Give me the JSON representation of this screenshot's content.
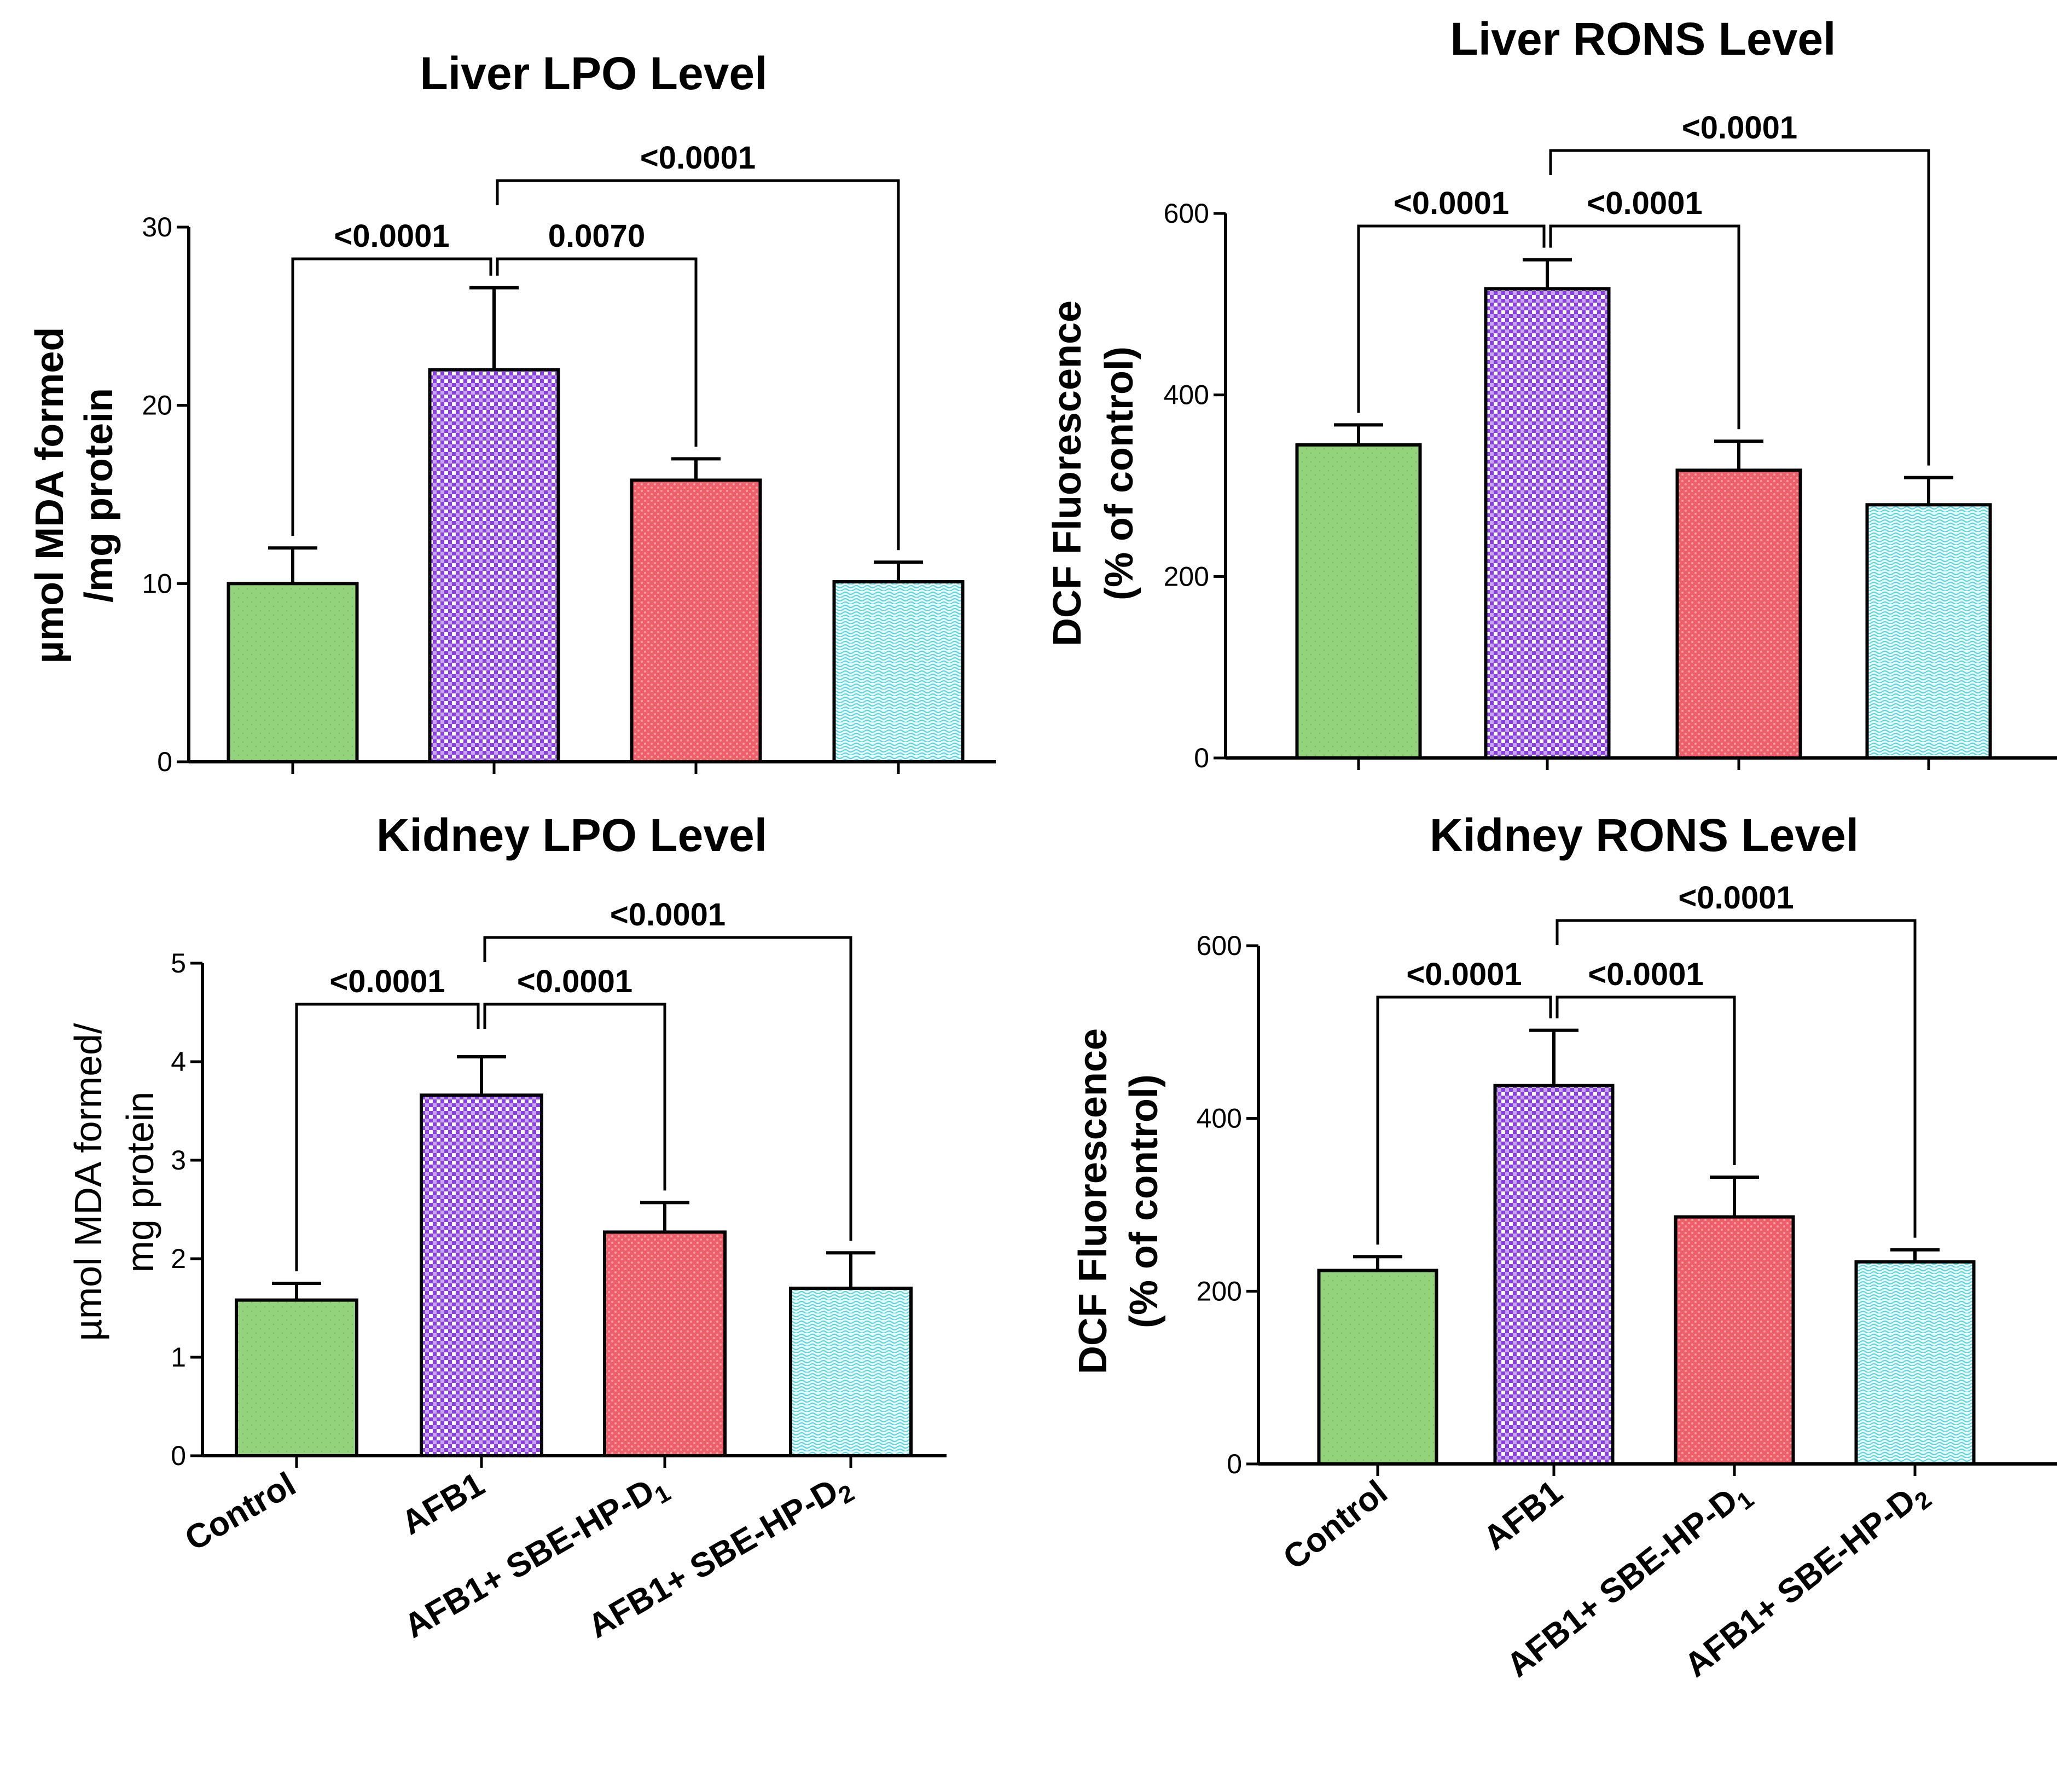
{
  "colors": {
    "control": "#92d37c",
    "afb1": "#9d5cf0",
    "d1": "#ef5f6a",
    "d2": "#b7f2f2",
    "axis": "#000000"
  },
  "chart_data": [
    {
      "type": "bar",
      "title": "Liver LPO Level",
      "ylabel_lines": [
        "µmol MDA formed",
        "/mg protein"
      ],
      "categories": [
        "Control",
        "AFB1",
        "AFB1+ SBE-HP-D1",
        "AFB1+ SBE-HP-D2"
      ],
      "values": [
        10.0,
        22.0,
        15.8,
        10.1
      ],
      "errors": [
        2.0,
        4.6,
        1.2,
        1.1
      ],
      "ylim": [
        0,
        30
      ],
      "yticks": [
        0,
        10,
        20,
        30
      ],
      "comparisons": [
        {
          "from": 1,
          "to": 0,
          "label": "<0.0001",
          "level": 0
        },
        {
          "from": 1,
          "to": 2,
          "label": "0.0070",
          "level": 0
        },
        {
          "from": 1,
          "to": 3,
          "label": "<0.0001",
          "level": 1
        }
      ]
    },
    {
      "type": "bar",
      "title": "Liver RONS Level",
      "ylabel_lines": [
        "DCF Fluorescence",
        "(% of control)"
      ],
      "categories": [
        "Control",
        "AFB1",
        "AFB1+ SBE-HP-D1",
        "AFB1+ SBE-HP-D2"
      ],
      "values": [
        345,
        517,
        317,
        279
      ],
      "errors": [
        22,
        32,
        32,
        30
      ],
      "ylim": [
        0,
        600
      ],
      "yticks": [
        0,
        200,
        400,
        600
      ],
      "comparisons": [
        {
          "from": 1,
          "to": 0,
          "label": "<0.0001",
          "level": 0
        },
        {
          "from": 1,
          "to": 2,
          "label": "<0.0001",
          "level": 0
        },
        {
          "from": 1,
          "to": 3,
          "label": "<0.0001",
          "level": 1
        }
      ]
    },
    {
      "type": "bar",
      "title": "Kidney LPO Level",
      "ylabel_lines": [
        "µmol MDA formed/",
        "mg protein"
      ],
      "categories": [
        "Control",
        "AFB1",
        "AFB1+ SBE-HP-D1",
        "AFB1+ SBE-HP-D2"
      ],
      "values": [
        1.58,
        3.66,
        2.27,
        1.7
      ],
      "errors": [
        0.17,
        0.39,
        0.3,
        0.36
      ],
      "ylim": [
        0,
        5
      ],
      "yticks": [
        0,
        1,
        2,
        3,
        4,
        5
      ],
      "comparisons": [
        {
          "from": 1,
          "to": 0,
          "label": "<0.0001",
          "level": 0
        },
        {
          "from": 1,
          "to": 2,
          "label": "<0.0001",
          "level": 0
        },
        {
          "from": 1,
          "to": 3,
          "label": "<0.0001",
          "level": 1
        }
      ]
    },
    {
      "type": "bar",
      "title": "Kidney RONS Level",
      "ylabel_lines": [
        "DCF Fluorescence",
        "(% of control)"
      ],
      "categories": [
        "Control",
        "AFB1",
        "AFB1+ SBE-HP-D1",
        "AFB1+ SBE-HP-D2"
      ],
      "values": [
        224,
        438,
        286,
        234
      ],
      "errors": [
        16,
        64,
        46,
        14
      ],
      "ylim": [
        0,
        600
      ],
      "yticks": [
        0,
        200,
        400,
        600
      ],
      "comparisons": [
        {
          "from": 1,
          "to": 0,
          "label": "<0.0001",
          "level": 0
        },
        {
          "from": 1,
          "to": 2,
          "label": "<0.0001",
          "level": 0
        },
        {
          "from": 1,
          "to": 3,
          "label": "<0.0001",
          "level": 1
        }
      ]
    }
  ],
  "x_labels": {
    "control": "Control",
    "afb1": "AFB1",
    "d1_main": "AFB1+ SBE-HP-D",
    "d1_sub": "1",
    "d2_main": "AFB1+ SBE-HP-D",
    "d2_sub": "2"
  }
}
